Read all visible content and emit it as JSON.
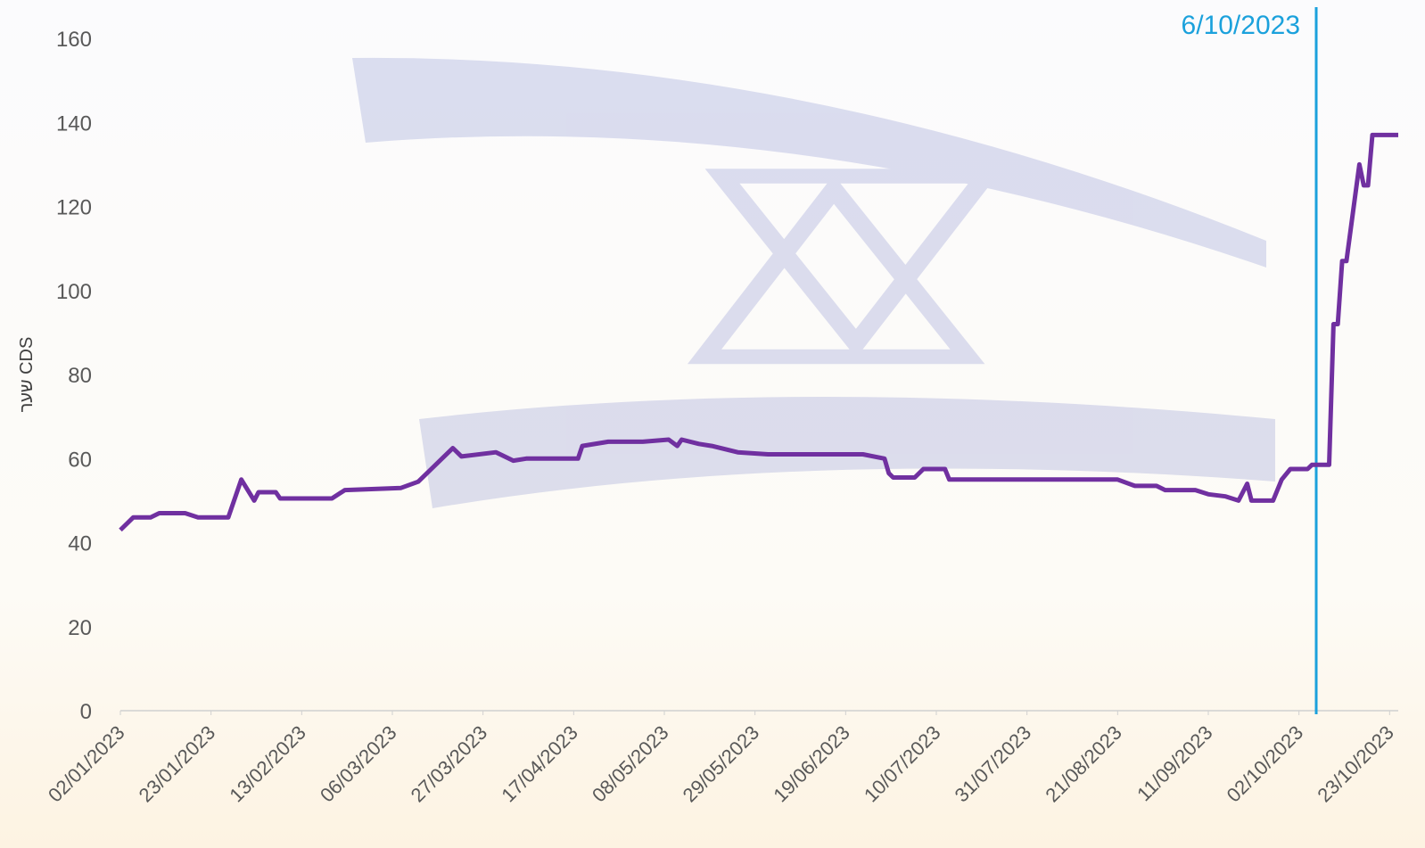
{
  "chart_data": {
    "type": "line",
    "y_label": "שער CDS",
    "x": [
      "02/01/2023",
      "05/01/2023",
      "09/01/2023",
      "11/01/2023",
      "17/01/2023",
      "20/01/2023",
      "27/01/2023",
      "30/01/2023",
      "02/02/2023",
      "03/02/2023",
      "07/02/2023",
      "08/02/2023",
      "20/02/2023",
      "23/02/2023",
      "08/03/2023",
      "12/03/2023",
      "15/03/2023",
      "20/03/2023",
      "22/03/2023",
      "30/03/2023",
      "03/04/2023",
      "06/04/2023",
      "18/04/2023",
      "19/04/2023",
      "25/04/2023",
      "03/05/2023",
      "09/05/2023",
      "11/05/2023",
      "12/05/2023",
      "16/05/2023",
      "19/05/2023",
      "25/05/2023",
      "01/06/2023",
      "23/06/2023",
      "28/06/2023",
      "29/06/2023",
      "30/06/2023",
      "05/07/2023",
      "07/07/2023",
      "12/07/2023",
      "13/07/2023",
      "21/08/2023",
      "25/08/2023",
      "30/08/2023",
      "01/09/2023",
      "08/09/2023",
      "11/09/2023",
      "15/09/2023",
      "18/09/2023",
      "20/09/2023",
      "21/09/2023",
      "26/09/2023",
      "28/09/2023",
      "30/09/2023",
      "04/10/2023",
      "05/10/2023",
      "09/10/2023",
      "10/10/2023",
      "11/10/2023",
      "12/10/2023",
      "13/10/2023",
      "16/10/2023",
      "17/10/2023",
      "18/10/2023",
      "19/10/2023",
      "25/10/2023"
    ],
    "series": [
      {
        "color": "#7030a0",
        "values": [
          43,
          46,
          46,
          47,
          47,
          46,
          46,
          55,
          50,
          52,
          52,
          50.5,
          50.5,
          52.5,
          53,
          54.5,
          57.5,
          62.5,
          60.5,
          61.5,
          59.5,
          60,
          60,
          63,
          64,
          64,
          64.5,
          63,
          64.5,
          63.5,
          63,
          61.5,
          61,
          61,
          60,
          56.5,
          55.5,
          55.5,
          57.5,
          57.5,
          55,
          55,
          53.5,
          53.5,
          52.5,
          52.5,
          51.5,
          51,
          50,
          54,
          50,
          50,
          55,
          57.5,
          57.5,
          58.5,
          58.5,
          92,
          92,
          107,
          107,
          130,
          125,
          125,
          137,
          137
        ]
      }
    ],
    "xlim": [
      "02/01/2023",
      "25/10/2023"
    ],
    "xticks": [
      "02/01/2023",
      "23/01/2023",
      "13/02/2023",
      "06/03/2023",
      "27/03/2023",
      "17/04/2023",
      "08/05/2023",
      "29/05/2023",
      "19/06/2023",
      "10/07/2023",
      "31/07/2023",
      "21/08/2023",
      "11/09/2023",
      "02/10/2023",
      "23/10/2023"
    ],
    "ylim": [
      0,
      160
    ],
    "yticks": [
      0,
      20,
      40,
      60,
      80,
      100,
      120,
      140,
      160
    ],
    "annotation": {
      "text": "6/10/2023",
      "x": "06/10/2023",
      "color": "#1ba1dc"
    }
  }
}
